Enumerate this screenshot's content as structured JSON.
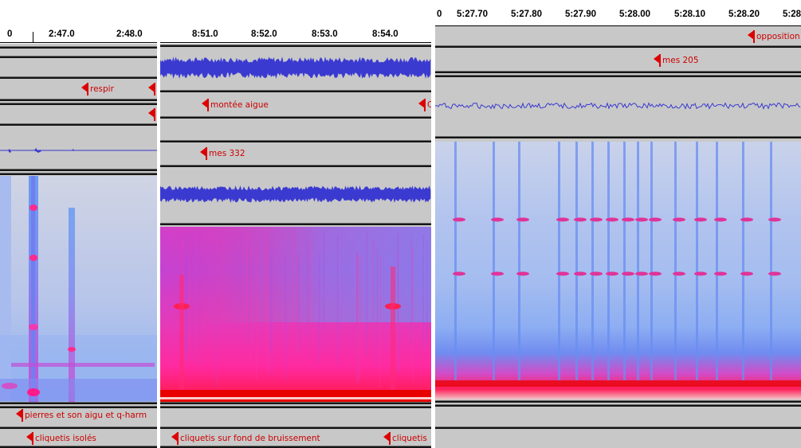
{
  "panels": [
    {
      "ruler": [
        "0",
        "2:47.0",
        "2:48.0"
      ],
      "markers": [
        "respir",
        "",
        "pierres et son aigu et q-harm",
        "cliquetis isolés"
      ]
    },
    {
      "ruler": [
        "8:51.0",
        "8:52.0",
        "8:53.0",
        "8:54.0"
      ],
      "markers": [
        "montée aigue",
        "C",
        "mes 332",
        "cliquetis sur fond de bruissement",
        "cliquetis"
      ]
    },
    {
      "ruler": [
        "0",
        "5:27.70",
        "5:27.80",
        "5:27.90",
        "5:28.00",
        "5:28.10",
        "5:28.20",
        "5:28"
      ],
      "markers": [
        "opposition",
        "mes 205"
      ]
    }
  ],
  "colors": {
    "band": "#c8c8c8",
    "separator": "#151515",
    "marker": "#dd0000",
    "waveform": "#3a3ad0",
    "spectrogram_low": "#78aaf0",
    "spectrogram_high": "#ff1a8c"
  }
}
